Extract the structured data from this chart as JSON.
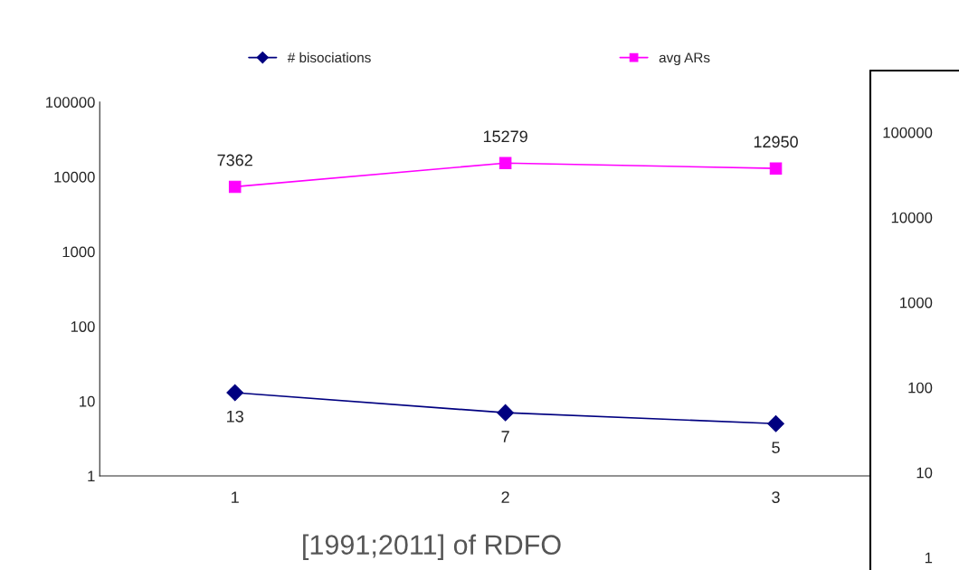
{
  "chart_data": [
    {
      "type": "line",
      "categories": [
        "1",
        "2",
        "3"
      ],
      "log": "y",
      "ylim": [
        1,
        100000
      ],
      "yticks": [
        1,
        10,
        100,
        1000,
        10000,
        100000
      ],
      "grid": false,
      "legend": "top",
      "data_labels": true,
      "series": [
        {
          "name": "# bisociations",
          "color": "#000080",
          "marker": "diamond",
          "values": [
            13,
            7,
            5
          ]
        },
        {
          "name": "avg ARs",
          "color": "#ff00ff",
          "marker": "square",
          "values": [
            7362,
            15279,
            12950
          ]
        }
      ],
      "annotations": [
        "[1991;2011] of RDFO"
      ]
    },
    {
      "type": "other",
      "annotations": [
        "100000",
        "10000",
        "1000",
        "100",
        "10",
        "1"
      ]
    }
  ]
}
